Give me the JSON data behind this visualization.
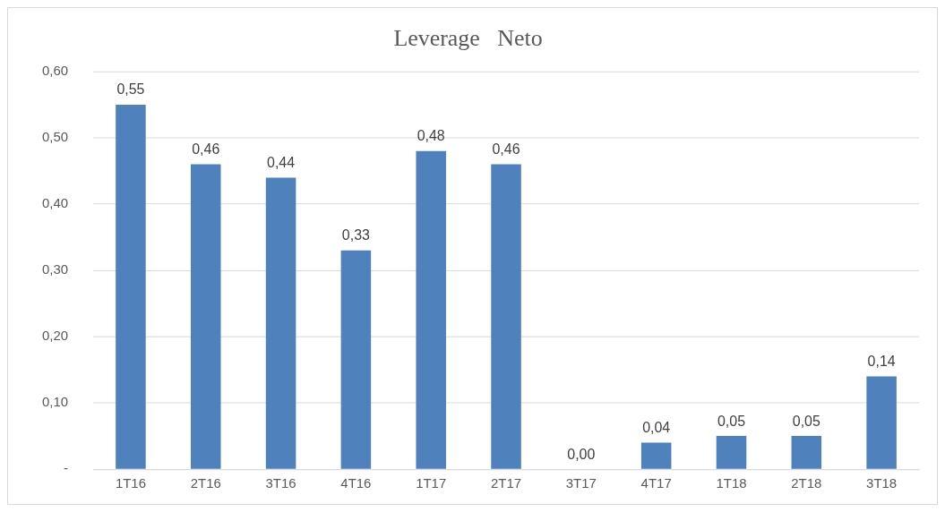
{
  "chart_data": {
    "type": "bar",
    "title": "Leverage   Neto",
    "categories": [
      "1T16",
      "2T16",
      "3T16",
      "4T16",
      "1T17",
      "2T17",
      "3T17",
      "4T17",
      "1T18",
      "2T18",
      "3T18"
    ],
    "values": [
      0.55,
      0.46,
      0.44,
      0.33,
      0.48,
      0.46,
      0.0,
      0.04,
      0.05,
      0.05,
      0.14
    ],
    "value_labels": [
      "0,55",
      "0,46",
      "0,44",
      "0,33",
      "0,48",
      "0,46",
      "0,00",
      "0,04",
      "0,05",
      "0,05",
      "0,14"
    ],
    "color": "#4f81bd",
    "ylim": [
      0,
      0.6
    ],
    "yticks": [
      {
        "value": 0,
        "label": "-"
      },
      {
        "value": 0.1,
        "label": "0,10"
      },
      {
        "value": 0.2,
        "label": "0,20"
      },
      {
        "value": 0.3,
        "label": "0,30"
      },
      {
        "value": 0.4,
        "label": "0,40"
      },
      {
        "value": 0.5,
        "label": "0,50"
      },
      {
        "value": 0.6,
        "label": "0,60"
      }
    ],
    "grid": "y"
  }
}
